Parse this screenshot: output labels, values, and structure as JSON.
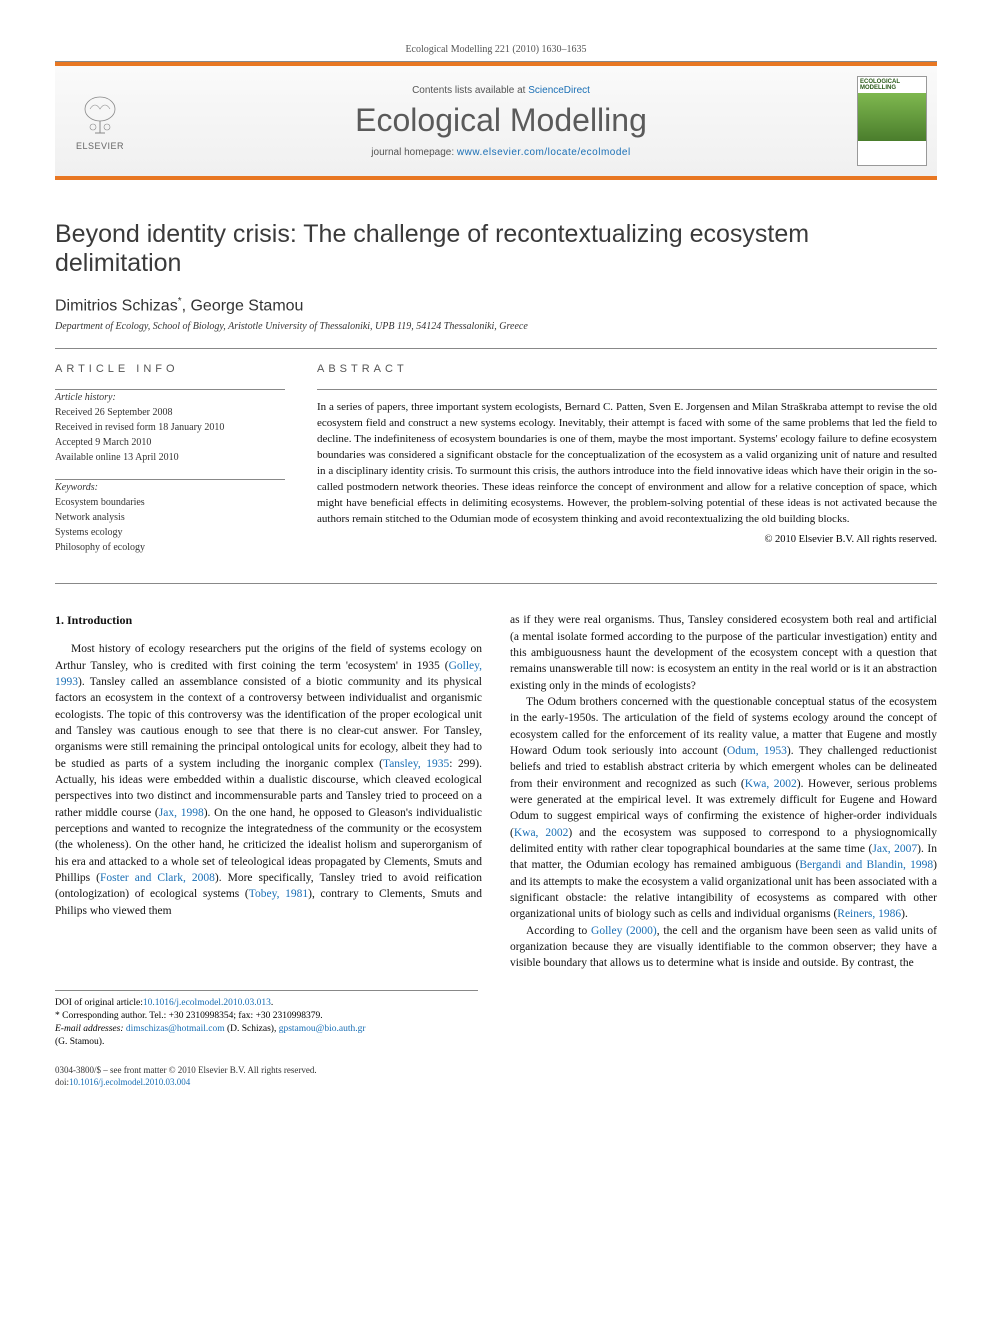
{
  "journal_ref": "Ecological Modelling 221 (2010) 1630–1635",
  "masthead": {
    "contents_prefix": "Contents lists available at ",
    "contents_link": "ScienceDirect",
    "journal_name": "Ecological Modelling",
    "homepage_prefix": "journal homepage: ",
    "homepage_url": "www.elsevier.com/locate/ecolmodel",
    "publisher": "ELSEVIER",
    "cover_label": "ECOLOGICAL MODELLING"
  },
  "article": {
    "title": "Beyond identity crisis: The challenge of recontextualizing ecosystem delimitation",
    "authors": "Dimitrios Schizas",
    "authors_sup": "*",
    "authors2": ", George Stamou",
    "affiliation": "Department of Ecology, School of Biology, Aristotle University of Thessaloniki, UPB 119, 54124 Thessaloniki, Greece"
  },
  "info": {
    "heading": "article info",
    "history_label": "Article history:",
    "history": [
      "Received 26 September 2008",
      "Received in revised form 18 January 2010",
      "Accepted 9 March 2010",
      "Available online 13 April 2010"
    ],
    "keywords_label": "Keywords:",
    "keywords": [
      "Ecosystem boundaries",
      "Network analysis",
      "Systems ecology",
      "Philosophy of ecology"
    ]
  },
  "abstract": {
    "heading": "abstract",
    "text": "In a series of papers, three important system ecologists, Bernard C. Patten, Sven E. Jorgensen and Milan Straškraba attempt to revise the old ecosystem field and construct a new systems ecology. Inevitably, their attempt is faced with some of the same problems that led the field to decline. The indefiniteness of ecosystem boundaries is one of them, maybe the most important. Systems' ecology failure to define ecosystem boundaries was considered a significant obstacle for the conceptualization of the ecosystem as a valid organizing unit of nature and resulted in a disciplinary identity crisis. To surmount this crisis, the authors introduce into the field innovative ideas which have their origin in the so-called postmodern network theories. These ideas reinforce the concept of environment and allow for a relative conception of space, which might have beneficial effects in delimiting ecosystems. However, the problem-solving potential of these ideas is not activated because the authors remain stitched to the Odumian mode of ecosystem thinking and avoid recontextualizing the old building blocks.",
    "copyright": "© 2010 Elsevier B.V. All rights reserved."
  },
  "body": {
    "section_heading": "1. Introduction",
    "col1_p1": "Most history of ecology researchers put the origins of the field of systems ecology on Arthur Tansley, who is credited with first coining the term 'ecosystem' in 1935 (Golley, 1993). Tansley called an assemblance consisted of a biotic community and its physical factors an ecosystem in the context of a controversy between individualist and organismic ecologists. The topic of this controversy was the identification of the proper ecological unit and Tansley was cautious enough to see that there is no clear-cut answer. For Tansley, organisms were still remaining the principal ontological units for ecology, albeit they had to be studied as parts of a system including the inorganic complex (Tansley, 1935: 299). Actually, his ideas were embedded within a dualistic discourse, which cleaved ecological perspectives into two distinct and incommensurable parts and Tansley tried to proceed on a rather middle course (Jax, 1998). On the one hand, he opposed to Gleason's individualistic perceptions and wanted to recognize the integratedness of the community or the ecosystem (the wholeness). On the other hand, he criticized the idealist holism and superorganism of his era and attacked to a whole set of teleological ideas propagated by Clements, Smuts and Phillips (Foster and Clark, 2008). More specifically, Tansley tried to avoid reification (ontologization) of ecological systems (Tobey, 1981), contrary to Clements, Smuts and Philips who viewed them",
    "col2_p1": "as if they were real organisms. Thus, Tansley considered ecosystem both real and artificial (a mental isolate formed according to the purpose of the particular investigation) entity and this ambiguousness haunt the development of the ecosystem concept with a question that remains unanswerable till now: is ecosystem an entity in the real world or is it an abstraction existing only in the minds of ecologists?",
    "col2_p2": "The Odum brothers concerned with the questionable conceptual status of the ecosystem in the early-1950s. The articulation of the field of systems ecology around the concept of ecosystem called for the enforcement of its reality value, a matter that Eugene and mostly Howard Odum took seriously into account (Odum, 1953). They challenged reductionist beliefs and tried to establish abstract criteria by which emergent wholes can be delineated from their environment and recognized as such (Kwa, 2002). However, serious problems were generated at the empirical level. It was extremely difficult for Eugene and Howard Odum to suggest empirical ways of confirming the existence of higher-order individuals (Kwa, 2002) and the ecosystem was supposed to correspond to a physiognomically delimited entity with rather clear topographical boundaries at the same time (Jax, 2007). In that matter, the Odumian ecology has remained ambiguous (Bergandi and Blandin, 1998) and its attempts to make the ecosystem a valid organizational unit has been associated with a significant obstacle: the relative intangibility of ecosystems as compared with other organizational units of biology such as cells and individual organisms (Reiners, 1986).",
    "col2_p3": "According to Golley (2000), the cell and the organism have been seen as valid units of organization because they are visually identifiable to the common observer; they have a visible boundary that allows us to determine what is inside and outside. By contrast, the"
  },
  "footnotes": {
    "doi_label": "DOI of original article:",
    "doi_link": "10.1016/j.ecolmodel.2010.03.013",
    "corr_label": "* Corresponding author. Tel.: +30 2310998354; fax: +30 2310998379.",
    "email_label": "E-mail addresses:",
    "email1": "dimschizas@hotmail.com",
    "email1_who": " (D. Schizas), ",
    "email2": "gpstamou@bio.auth.gr",
    "email2_who": "(G. Stamou)."
  },
  "footer": {
    "issn": "0304-3800/$ – see front matter © 2010 Elsevier B.V. All rights reserved.",
    "doi_prefix": "doi:",
    "doi": "10.1016/j.ecolmodel.2010.03.004"
  },
  "links": {
    "golley1993": "Golley, 1993",
    "tansley1935": "Tansley, 1935",
    "jax1998": "Jax, 1998",
    "fosterclark2008": "Foster and Clark, 2008",
    "tobey1981": "Tobey, 1981",
    "odum1953": "Odum, 1953",
    "kwa2002": "Kwa, 2002",
    "jax2007": "Jax, 2007",
    "bergandi1998": "Bergandi and Blandin, 1998",
    "reiners1986": "Reiners, 1986",
    "golley2000": "Golley (2000)"
  },
  "colors": {
    "accent_orange": "#e87722",
    "link_blue": "#1a6fb5",
    "text_gray": "#555"
  }
}
